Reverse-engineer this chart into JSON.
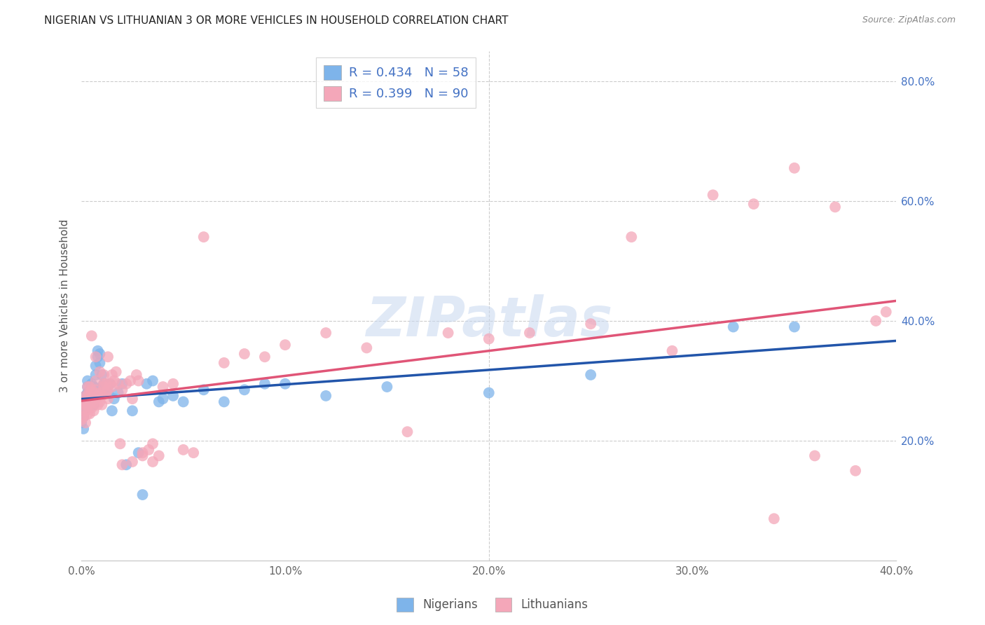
{
  "title": "NIGERIAN VS LITHUANIAN 3 OR MORE VEHICLES IN HOUSEHOLD CORRELATION CHART",
  "source": "Source: ZipAtlas.com",
  "ylabel": "3 or more Vehicles in Household",
  "xlabel_nigerian": "Nigerians",
  "xlabel_lithuanian": "Lithuanians",
  "watermark": "ZIPatlas",
  "xmin": 0.0,
  "xmax": 0.4,
  "ymin": 0.0,
  "ymax": 0.85,
  "blue_color": "#7EB4EA",
  "pink_color": "#F4A7B9",
  "blue_line_color": "#2255AA",
  "pink_line_color": "#E05577",
  "legend_text_color": "#4472C4",
  "R_nigerian": 0.434,
  "N_nigerian": 58,
  "R_lithuanian": 0.399,
  "N_lithuanian": 90,
  "nigerian_x": [
    0.0,
    0.001,
    0.001,
    0.001,
    0.002,
    0.002,
    0.002,
    0.002,
    0.003,
    0.003,
    0.003,
    0.003,
    0.004,
    0.004,
    0.004,
    0.005,
    0.005,
    0.005,
    0.006,
    0.006,
    0.006,
    0.007,
    0.007,
    0.008,
    0.008,
    0.009,
    0.009,
    0.01,
    0.01,
    0.011,
    0.012,
    0.013,
    0.014,
    0.015,
    0.016,
    0.018,
    0.02,
    0.022,
    0.025,
    0.028,
    0.03,
    0.032,
    0.035,
    0.038,
    0.04,
    0.045,
    0.05,
    0.06,
    0.07,
    0.08,
    0.09,
    0.1,
    0.12,
    0.15,
    0.2,
    0.25,
    0.32,
    0.35
  ],
  "nigerian_y": [
    0.23,
    0.24,
    0.25,
    0.22,
    0.255,
    0.265,
    0.275,
    0.26,
    0.27,
    0.28,
    0.29,
    0.3,
    0.265,
    0.275,
    0.285,
    0.27,
    0.285,
    0.295,
    0.26,
    0.275,
    0.29,
    0.31,
    0.325,
    0.34,
    0.35,
    0.33,
    0.345,
    0.29,
    0.31,
    0.295,
    0.29,
    0.28,
    0.295,
    0.25,
    0.27,
    0.28,
    0.295,
    0.16,
    0.25,
    0.18,
    0.11,
    0.295,
    0.3,
    0.265,
    0.27,
    0.275,
    0.265,
    0.285,
    0.265,
    0.285,
    0.295,
    0.295,
    0.275,
    0.29,
    0.28,
    0.31,
    0.39,
    0.39
  ],
  "lithuanian_x": [
    0.0,
    0.001,
    0.001,
    0.001,
    0.002,
    0.002,
    0.002,
    0.002,
    0.003,
    0.003,
    0.003,
    0.003,
    0.004,
    0.004,
    0.004,
    0.004,
    0.005,
    0.005,
    0.005,
    0.006,
    0.006,
    0.006,
    0.007,
    0.007,
    0.007,
    0.008,
    0.008,
    0.009,
    0.009,
    0.01,
    0.01,
    0.011,
    0.011,
    0.012,
    0.012,
    0.013,
    0.013,
    0.014,
    0.015,
    0.016,
    0.017,
    0.018,
    0.019,
    0.02,
    0.022,
    0.024,
    0.025,
    0.027,
    0.028,
    0.03,
    0.033,
    0.035,
    0.038,
    0.04,
    0.045,
    0.05,
    0.055,
    0.06,
    0.07,
    0.08,
    0.09,
    0.1,
    0.12,
    0.14,
    0.16,
    0.18,
    0.2,
    0.22,
    0.25,
    0.27,
    0.29,
    0.31,
    0.33,
    0.34,
    0.35,
    0.36,
    0.37,
    0.38,
    0.39,
    0.395,
    0.005,
    0.007,
    0.009,
    0.011,
    0.013,
    0.015,
    0.02,
    0.025,
    0.03,
    0.035
  ],
  "lithuanian_y": [
    0.235,
    0.24,
    0.255,
    0.265,
    0.23,
    0.25,
    0.26,
    0.275,
    0.245,
    0.26,
    0.275,
    0.29,
    0.245,
    0.26,
    0.275,
    0.29,
    0.255,
    0.27,
    0.285,
    0.25,
    0.265,
    0.28,
    0.27,
    0.285,
    0.3,
    0.26,
    0.275,
    0.265,
    0.28,
    0.26,
    0.275,
    0.29,
    0.31,
    0.295,
    0.28,
    0.27,
    0.285,
    0.295,
    0.29,
    0.3,
    0.315,
    0.295,
    0.195,
    0.285,
    0.295,
    0.3,
    0.27,
    0.31,
    0.3,
    0.18,
    0.185,
    0.195,
    0.175,
    0.29,
    0.295,
    0.185,
    0.18,
    0.54,
    0.33,
    0.345,
    0.34,
    0.36,
    0.38,
    0.355,
    0.215,
    0.38,
    0.37,
    0.38,
    0.395,
    0.54,
    0.35,
    0.61,
    0.595,
    0.07,
    0.655,
    0.175,
    0.59,
    0.15,
    0.4,
    0.415,
    0.375,
    0.34,
    0.315,
    0.295,
    0.34,
    0.31,
    0.16,
    0.165,
    0.175,
    0.165
  ]
}
